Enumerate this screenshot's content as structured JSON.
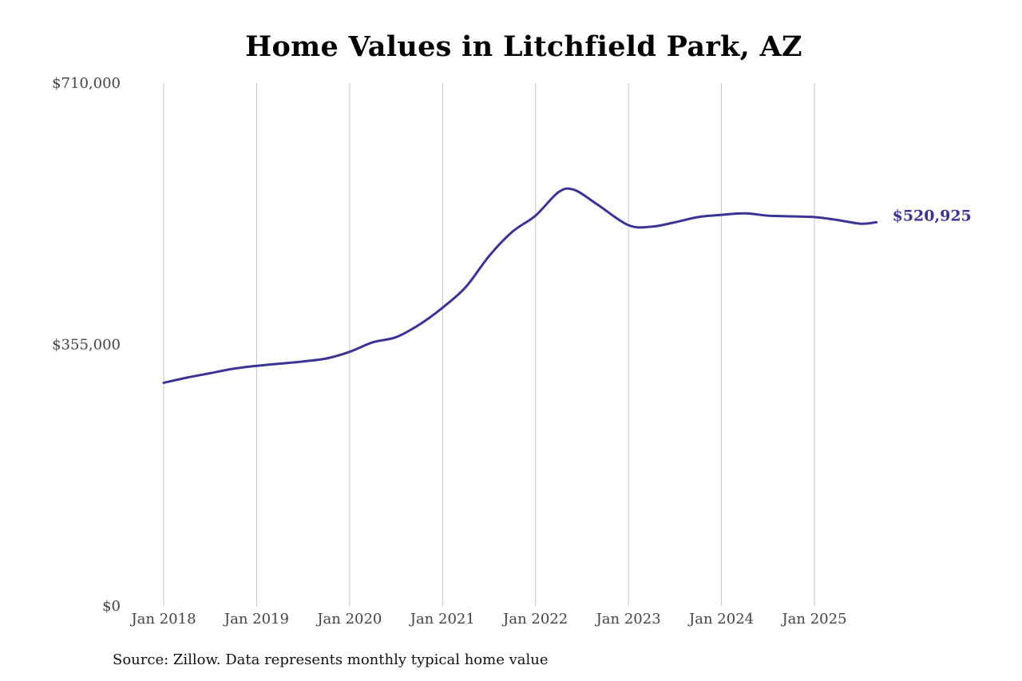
{
  "chart_data": {
    "type": "line",
    "title": "Home Values in Litchfield Park, AZ",
    "xlabel": "",
    "ylabel": "",
    "ylim": [
      0,
      710000
    ],
    "y_ticks": [
      {
        "value": 0,
        "label": "$0"
      },
      {
        "value": 355000,
        "label": "$355,000"
      },
      {
        "value": 710000,
        "label": "$710,000"
      }
    ],
    "x_ticks": [
      {
        "date": "2018-01",
        "label": "Jan 2018"
      },
      {
        "date": "2019-01",
        "label": "Jan 2019"
      },
      {
        "date": "2020-01",
        "label": "Jan 2020"
      },
      {
        "date": "2021-01",
        "label": "Jan 2021"
      },
      {
        "date": "2022-01",
        "label": "Jan 2022"
      },
      {
        "date": "2023-01",
        "label": "Jan 2023"
      },
      {
        "date": "2024-01",
        "label": "Jan 2024"
      },
      {
        "date": "2025-01",
        "label": "Jan 2025"
      }
    ],
    "grid": {
      "vertical": true,
      "horizontal": false
    },
    "line_color": "#3b3494",
    "end_label": "$520,925",
    "series": [
      {
        "points": [
          {
            "date": "2018-01",
            "value": 303000
          },
          {
            "date": "2018-04",
            "value": 310000
          },
          {
            "date": "2018-07",
            "value": 316000
          },
          {
            "date": "2018-10",
            "value": 322000
          },
          {
            "date": "2019-01",
            "value": 326000
          },
          {
            "date": "2019-04",
            "value": 329000
          },
          {
            "date": "2019-07",
            "value": 332000
          },
          {
            "date": "2019-10",
            "value": 336000
          },
          {
            "date": "2020-01",
            "value": 345000
          },
          {
            "date": "2020-04",
            "value": 358000
          },
          {
            "date": "2020-07",
            "value": 365000
          },
          {
            "date": "2020-10",
            "value": 382000
          },
          {
            "date": "2021-01",
            "value": 405000
          },
          {
            "date": "2021-04",
            "value": 433000
          },
          {
            "date": "2021-07",
            "value": 475000
          },
          {
            "date": "2021-10",
            "value": 508000
          },
          {
            "date": "2022-01",
            "value": 530000
          },
          {
            "date": "2022-04",
            "value": 562000
          },
          {
            "date": "2022-06",
            "value": 565000
          },
          {
            "date": "2022-09",
            "value": 545000
          },
          {
            "date": "2023-01",
            "value": 517000
          },
          {
            "date": "2023-04",
            "value": 515000
          },
          {
            "date": "2023-07",
            "value": 521000
          },
          {
            "date": "2023-10",
            "value": 528000
          },
          {
            "date": "2024-01",
            "value": 531000
          },
          {
            "date": "2024-04",
            "value": 533000
          },
          {
            "date": "2024-07",
            "value": 530000
          },
          {
            "date": "2024-10",
            "value": 529000
          },
          {
            "date": "2025-01",
            "value": 528000
          },
          {
            "date": "2025-04",
            "value": 524000
          },
          {
            "date": "2025-07",
            "value": 519000
          },
          {
            "date": "2025-09",
            "value": 520925
          }
        ]
      }
    ]
  },
  "source_note": "Source: Zillow. Data represents monthly typical home value"
}
